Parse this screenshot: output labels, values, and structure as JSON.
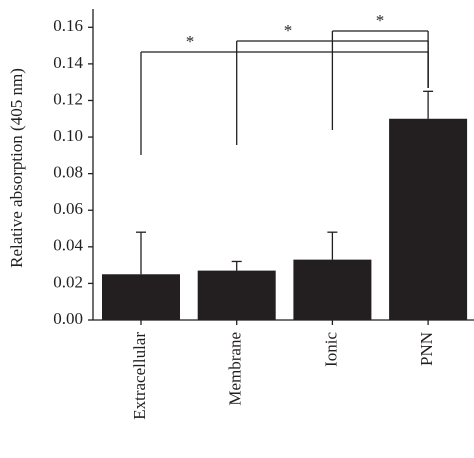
{
  "chart_data": {
    "type": "bar",
    "y_label": "Relative absorption (405 nm)",
    "categories": [
      "Extracellular",
      "Membrane",
      "Ionic",
      "PNN"
    ],
    "values": [
      0.025,
      0.027,
      0.033,
      0.11
    ],
    "errors": [
      0.023,
      0.005,
      0.015,
      0.015
    ],
    "color": "#231f20",
    "ylim": [
      0,
      0.17
    ],
    "yticks": [
      {
        "value": 0,
        "label": "0.00"
      },
      {
        "value": 0.02,
        "label": "0.02"
      },
      {
        "value": 0.04,
        "label": "0.04"
      },
      {
        "value": 0.06,
        "label": "0.06"
      },
      {
        "value": 0.08,
        "label": "0.08"
      },
      {
        "value": 0.1,
        "label": "0.10"
      },
      {
        "value": 0.12,
        "label": "0.12"
      },
      {
        "value": 0.14,
        "label": "0.14"
      },
      {
        "value": 0.16,
        "label": "0.16"
      }
    ],
    "significance": [
      {
        "from": 0,
        "to": 3,
        "label": "*"
      },
      {
        "from": 1,
        "to": 3,
        "label": "*"
      },
      {
        "from": 2,
        "to": 3,
        "label": "*"
      }
    ]
  }
}
